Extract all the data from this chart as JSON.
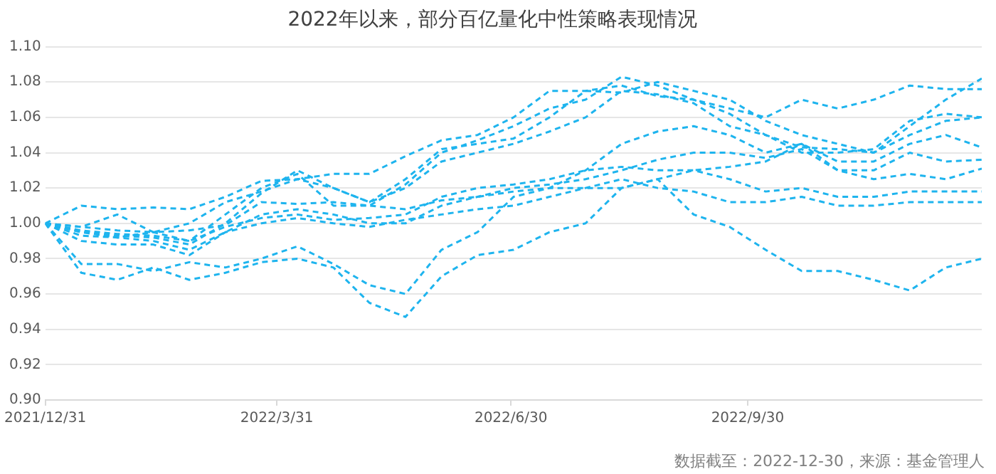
{
  "chart_data": {
    "type": "line",
    "title": "2022年以来，部分百亿量化中性策略表现情况",
    "annotations": [
      "数据截至：2022-12-30，来源：基金管理人"
    ],
    "x": [
      "2021-12-31",
      "2022-01-14",
      "2022-01-28",
      "2022-02-11",
      "2022-02-25",
      "2022-03-11",
      "2022-03-25",
      "2022-04-08",
      "2022-04-22",
      "2022-05-06",
      "2022-05-20",
      "2022-06-03",
      "2022-06-17",
      "2022-07-01",
      "2022-07-15",
      "2022-07-29",
      "2022-08-12",
      "2022-08-26",
      "2022-09-09",
      "2022-09-23",
      "2022-10-07",
      "2022-10-21",
      "2022-11-04",
      "2022-11-18",
      "2022-12-02",
      "2022-12-16",
      "2022-12-30"
    ],
    "xlim": [
      "2021-12-31",
      "2022-12-30"
    ],
    "xticks": [
      {
        "value": "2021-12-31",
        "label": "2021/12/31"
      },
      {
        "value": "2022-03-31",
        "label": "2022/3/31"
      },
      {
        "value": "2022-06-30",
        "label": "2022/6/30"
      },
      {
        "value": "2022-09-30",
        "label": "2022/9/30"
      }
    ],
    "ylim": [
      0.9,
      1.1
    ],
    "yticks": [
      {
        "value": 0.9,
        "label": "0.90"
      },
      {
        "value": 0.92,
        "label": "0.92"
      },
      {
        "value": 0.94,
        "label": "0.94"
      },
      {
        "value": 0.96,
        "label": "0.96"
      },
      {
        "value": 0.98,
        "label": "0.98"
      },
      {
        "value": 1.0,
        "label": "1.00"
      },
      {
        "value": 1.02,
        "label": "1.02"
      },
      {
        "value": 1.04,
        "label": "1.04"
      },
      {
        "value": 1.06,
        "label": "1.06"
      },
      {
        "value": 1.08,
        "label": "1.08"
      },
      {
        "value": 1.1,
        "label": "1.10"
      }
    ],
    "grid": "y",
    "legend": false,
    "marker": "none",
    "line_style": "dashed",
    "series": [
      {
        "color": "#1eb4ee",
        "values": [
          1.0,
          1.01,
          1.008,
          1.009,
          1.008,
          1.015,
          1.024,
          1.025,
          1.028,
          1.028,
          1.038,
          1.047,
          1.05,
          1.06,
          1.075,
          1.075,
          1.078,
          1.072,
          1.07,
          1.065,
          1.06,
          1.07,
          1.065,
          1.07,
          1.078,
          1.076,
          1.076
        ]
      },
      {
        "color": "#1eb4ee",
        "values": [
          1.0,
          0.998,
          0.996,
          0.995,
          1.0,
          1.012,
          1.018,
          1.025,
          1.02,
          1.012,
          1.025,
          1.042,
          1.045,
          1.048,
          1.06,
          1.075,
          1.074,
          1.08,
          1.075,
          1.07,
          1.058,
          1.05,
          1.045,
          1.04,
          1.055,
          1.07,
          1.082
        ]
      },
      {
        "color": "#1eb4ee",
        "values": [
          1.0,
          0.996,
          0.994,
          0.993,
          0.99,
          1.005,
          1.02,
          1.028,
          1.01,
          1.01,
          1.022,
          1.04,
          1.047,
          1.055,
          1.065,
          1.07,
          1.083,
          1.078,
          1.07,
          1.062,
          1.05,
          1.04,
          1.04,
          1.042,
          1.058,
          1.062,
          1.06
        ]
      },
      {
        "color": "#1eb4ee",
        "values": [
          1.0,
          0.995,
          0.993,
          0.992,
          0.988,
          1.0,
          1.017,
          1.03,
          1.02,
          1.012,
          1.02,
          1.035,
          1.04,
          1.045,
          1.052,
          1.06,
          1.075,
          1.073,
          1.068,
          1.055,
          1.05,
          1.043,
          1.042,
          1.04,
          1.05,
          1.058,
          1.06
        ]
      },
      {
        "color": "#1eb4ee",
        "values": [
          1.0,
          0.977,
          0.977,
          0.973,
          0.978,
          0.975,
          0.98,
          0.987,
          0.977,
          0.965,
          0.96,
          0.985,
          0.995,
          1.015,
          1.02,
          1.03,
          1.045,
          1.052,
          1.055,
          1.05,
          1.04,
          1.045,
          1.035,
          1.035,
          1.045,
          1.05,
          1.043
        ]
      },
      {
        "color": "#1eb4ee",
        "values": [
          1.0,
          0.972,
          0.968,
          0.975,
          0.968,
          0.972,
          0.978,
          0.98,
          0.975,
          0.955,
          0.947,
          0.97,
          0.982,
          0.985,
          0.995,
          1.0,
          1.02,
          1.025,
          1.03,
          1.032,
          1.035,
          1.045,
          1.03,
          1.03,
          1.04,
          1.035,
          1.036
        ]
      },
      {
        "color": "#1eb4ee",
        "values": [
          1.0,
          0.995,
          0.992,
          0.99,
          0.985,
          0.995,
          1.005,
          1.008,
          1.005,
          1.0,
          1.0,
          1.01,
          1.015,
          1.02,
          1.022,
          1.025,
          1.03,
          1.036,
          1.04,
          1.04,
          1.037,
          1.042,
          1.03,
          1.025,
          1.028,
          1.025,
          1.031
        ]
      },
      {
        "color": "#1eb4ee",
        "values": [
          1.0,
          0.993,
          0.992,
          0.995,
          0.99,
          0.998,
          1.003,
          1.005,
          1.002,
          1.003,
          1.005,
          1.015,
          1.02,
          1.022,
          1.025,
          1.03,
          1.032,
          1.03,
          1.03,
          1.025,
          1.018,
          1.02,
          1.015,
          1.015,
          1.018,
          1.018,
          1.018
        ]
      },
      {
        "color": "#1eb4ee",
        "values": [
          1.0,
          0.99,
          0.988,
          0.988,
          0.982,
          0.995,
          1.0,
          1.003,
          1.0,
          0.998,
          1.002,
          1.005,
          1.008,
          1.01,
          1.015,
          1.02,
          1.025,
          1.02,
          1.018,
          1.012,
          1.012,
          1.015,
          1.01,
          1.01,
          1.012,
          1.012,
          1.012
        ]
      },
      {
        "color": "#1eb4ee",
        "values": [
          1.0,
          0.998,
          1.005,
          0.995,
          0.996,
          0.999,
          1.012,
          1.011,
          1.012,
          1.01,
          1.008,
          1.013,
          1.015,
          1.018,
          1.02,
          1.02,
          1.02,
          1.025,
          1.005,
          0.998,
          0.985,
          0.973,
          0.973,
          0.968,
          0.962,
          0.975,
          0.98
        ]
      }
    ]
  }
}
